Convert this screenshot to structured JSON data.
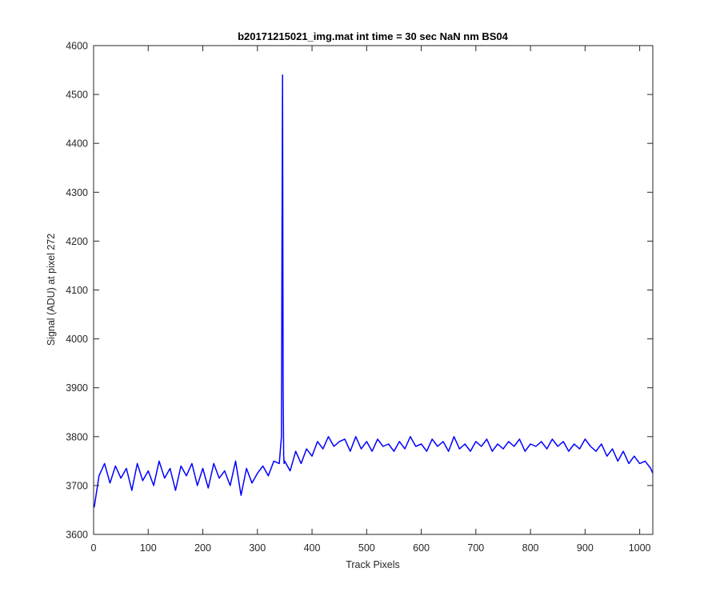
{
  "chart_data": {
    "type": "line",
    "title": "b20171215021_img.mat int time = 30 sec  NaN nm BS04",
    "xlabel": "Track Pixels",
    "ylabel": "Signal (ADU) at pixel 272",
    "xlim": [
      0,
      1024
    ],
    "ylim": [
      3600,
      4600
    ],
    "xticks": [
      0,
      100,
      200,
      300,
      400,
      500,
      600,
      700,
      800,
      900,
      1000
    ],
    "yticks": [
      3600,
      3700,
      3800,
      3900,
      4000,
      4100,
      4200,
      4300,
      4400,
      4500,
      4600
    ],
    "xtick_labels": [
      "0",
      "100",
      "200",
      "300",
      "400",
      "500",
      "600",
      "700",
      "800",
      "900",
      "1000"
    ],
    "ytick_labels": [
      "3600",
      "3700",
      "3800",
      "3900",
      "4000",
      "4100",
      "4200",
      "4300",
      "4400",
      "4500",
      "4600"
    ],
    "grid": false,
    "series": [
      {
        "color": "#0000ff",
        "x": [
          1,
          10,
          20,
          30,
          40,
          50,
          60,
          70,
          80,
          90,
          100,
          110,
          120,
          130,
          140,
          150,
          160,
          170,
          180,
          190,
          200,
          210,
          220,
          230,
          240,
          250,
          260,
          270,
          280,
          290,
          300,
          310,
          320,
          330,
          340,
          344,
          345,
          346,
          347,
          348,
          349,
          350,
          360,
          370,
          380,
          390,
          400,
          410,
          420,
          430,
          440,
          450,
          460,
          470,
          480,
          490,
          500,
          510,
          520,
          530,
          540,
          550,
          560,
          570,
          580,
          590,
          600,
          610,
          620,
          630,
          640,
          650,
          660,
          670,
          680,
          690,
          700,
          710,
          720,
          730,
          740,
          750,
          760,
          770,
          780,
          790,
          800,
          810,
          820,
          830,
          840,
          850,
          860,
          870,
          880,
          890,
          900,
          910,
          920,
          930,
          940,
          950,
          960,
          970,
          980,
          990,
          1000,
          1010,
          1020,
          1024
        ],
        "y": [
          3655,
          3720,
          3745,
          3705,
          3740,
          3715,
          3735,
          3690,
          3745,
          3710,
          3730,
          3700,
          3750,
          3715,
          3735,
          3690,
          3740,
          3720,
          3745,
          3700,
          3735,
          3695,
          3745,
          3715,
          3730,
          3700,
          3750,
          3680,
          3735,
          3705,
          3725,
          3740,
          3720,
          3750,
          3745,
          3800,
          4200,
          4540,
          3900,
          3760,
          3745,
          3750,
          3730,
          3770,
          3745,
          3775,
          3760,
          3790,
          3775,
          3800,
          3780,
          3790,
          3795,
          3770,
          3800,
          3775,
          3790,
          3770,
          3795,
          3780,
          3785,
          3770,
          3790,
          3775,
          3800,
          3780,
          3785,
          3770,
          3795,
          3780,
          3790,
          3770,
          3800,
          3775,
          3785,
          3770,
          3790,
          3780,
          3795,
          3770,
          3785,
          3775,
          3790,
          3780,
          3795,
          3770,
          3785,
          3780,
          3790,
          3775,
          3795,
          3780,
          3790,
          3770,
          3785,
          3775,
          3795,
          3780,
          3770,
          3785,
          3760,
          3775,
          3750,
          3770,
          3745,
          3760,
          3745,
          3750,
          3735,
          3725
        ]
      }
    ]
  }
}
